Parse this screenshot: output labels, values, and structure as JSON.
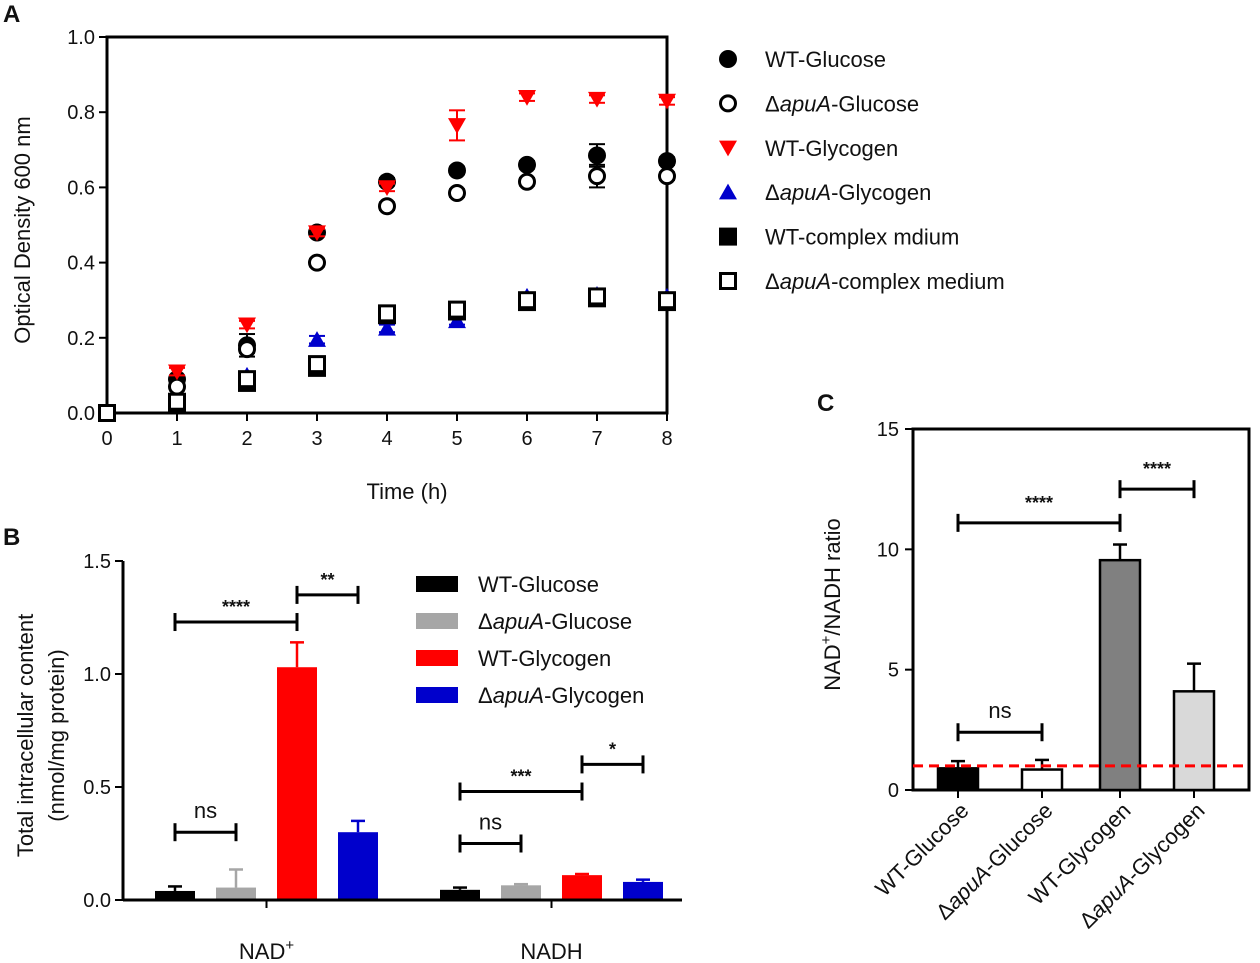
{
  "chart_data": [
    {
      "panel_label": "A",
      "type": "scatter",
      "xlabel": "Time (h)",
      "ylabel": "Optical Density 600 nm",
      "xlim": [
        0,
        8
      ],
      "ylim": [
        0,
        1.0
      ],
      "x_ticks": [
        "0",
        "1",
        "2",
        "3",
        "4",
        "5",
        "6",
        "7",
        "8"
      ],
      "y_ticks": [
        "0.0",
        "0.2",
        "0.4",
        "0.6",
        "0.8",
        "1.0"
      ],
      "x": [
        0,
        1,
        2,
        3,
        4,
        5,
        6,
        7,
        8
      ],
      "series": [
        {
          "name": "WT-Glucose",
          "marker": "circle-filled",
          "color": "#000000",
          "values": [
            0.0,
            0.09,
            0.18,
            0.48,
            0.615,
            0.645,
            0.66,
            0.685,
            0.67
          ],
          "errors": [
            0,
            0.01,
            0.03,
            0.01,
            0.01,
            0.01,
            0.01,
            0.03,
            0.01
          ]
        },
        {
          "name": "ΔapuA-Glucose",
          "marker": "circle-open",
          "color": "#000000",
          "values": [
            0.0,
            0.07,
            0.17,
            0.4,
            0.55,
            0.585,
            0.615,
            0.63,
            0.63
          ],
          "errors": [
            0,
            0.01,
            0.01,
            0.01,
            0.01,
            0.01,
            0.01,
            0.03,
            0.01
          ]
        },
        {
          "name": "WT-Glycogen",
          "marker": "triangle-down",
          "color": "#ff0000",
          "values": [
            0.0,
            0.11,
            0.235,
            0.48,
            0.6,
            0.765,
            0.84,
            0.835,
            0.83
          ],
          "errors": [
            0,
            0.01,
            0.01,
            0.01,
            0.01,
            0.04,
            0.01,
            0.01,
            0.01
          ]
        },
        {
          "name": "ΔapuA-Glycogen",
          "marker": "triangle-up",
          "color": "#0000cc",
          "values": [
            0.0,
            0.025,
            0.1,
            0.195,
            0.225,
            0.245,
            0.31,
            0.315,
            0.31
          ],
          "errors": [
            0,
            0.005,
            0.01,
            0.01,
            0.01,
            0.01,
            0.01,
            0.01,
            0.01
          ]
        },
        {
          "name": "WT-complex mdium",
          "marker": "square-filled",
          "color": "#000000",
          "values": [
            0.0,
            0.025,
            0.08,
            0.12,
            0.26,
            0.27,
            0.295,
            0.305,
            0.295
          ],
          "errors": [
            0,
            0.005,
            0.005,
            0.01,
            0.01,
            0.01,
            0.01,
            0.01,
            0.01
          ]
        },
        {
          "name": "ΔapuA-complex medium",
          "marker": "square-open",
          "color": "#000000",
          "values": [
            0.0,
            0.03,
            0.09,
            0.13,
            0.265,
            0.275,
            0.3,
            0.31,
            0.3
          ],
          "errors": [
            0,
            0.005,
            0.005,
            0.01,
            0.01,
            0.01,
            0.01,
            0.01,
            0.01
          ]
        }
      ]
    },
    {
      "panel_label": "B",
      "type": "bar",
      "ylabel": "Total intracellular content",
      "ylabel2": "(nmol/mg protein)",
      "ylim": [
        0,
        1.5
      ],
      "y_ticks": [
        "0.0",
        "0.5",
        "1.0",
        "1.5"
      ],
      "categories": [
        "NAD+",
        "NADH"
      ],
      "category_labels": [
        {
          "base": "NAD",
          "sup": "+"
        },
        {
          "base": "NADH",
          "sup": ""
        }
      ],
      "series": [
        {
          "name": "WT-Glucose",
          "color": "#000000",
          "values": [
            0.04,
            0.045
          ],
          "errors": [
            0.02,
            0.01
          ]
        },
        {
          "name": "ΔapuA-Glucose",
          "color": "#a6a6a6",
          "values": [
            0.055,
            0.065
          ],
          "errors": [
            0.08,
            0.005
          ]
        },
        {
          "name": "WT-Glycogen",
          "color": "#ff0000",
          "values": [
            1.03,
            0.11
          ],
          "errors": [
            0.11,
            0.005
          ]
        },
        {
          "name": "ΔapuA-Glycogen",
          "color": "#0000cc",
          "values": [
            0.3,
            0.08
          ],
          "errors": [
            0.05,
            0.01
          ]
        }
      ],
      "significance": [
        {
          "group": 0,
          "from": 0,
          "to": 1,
          "label": "ns",
          "level": 0.3
        },
        {
          "group": 0,
          "from": 0,
          "to": 2,
          "label": "****",
          "level": 1.23
        },
        {
          "group": 0,
          "from": 2,
          "to": 3,
          "label": "**",
          "level": 1.35
        },
        {
          "group": 1,
          "from": 0,
          "to": 1,
          "label": "ns",
          "level": 0.25
        },
        {
          "group": 1,
          "from": 0,
          "to": 2,
          "label": "***",
          "level": 0.48
        },
        {
          "group": 1,
          "from": 2,
          "to": 3,
          "label": "*",
          "level": 0.6
        }
      ]
    },
    {
      "panel_label": "C",
      "type": "bar",
      "ylabel_base": "NAD",
      "ylabel_sup": "+",
      "ylabel_rest": "/NADH ratio",
      "ylim": [
        0,
        15
      ],
      "y_ticks": [
        "0",
        "5",
        "10",
        "15"
      ],
      "categories": [
        "WT-Glucose",
        "ΔapuA-Glucose",
        "WT-Glycogen",
        "ΔapuA-Glycogen"
      ],
      "category_labels": [
        {
          "pre": "",
          "ital": "",
          "post": "WT-Glucose"
        },
        {
          "pre": "Δ",
          "ital": "apuA",
          "post": "-Glucose"
        },
        {
          "pre": "",
          "ital": "",
          "post": "WT-Glycogen"
        },
        {
          "pre": "Δ",
          "ital": "apuA",
          "post": "-Glycogen"
        }
      ],
      "values": [
        0.9,
        0.85,
        9.55,
        4.1
      ],
      "errors": [
        0.3,
        0.4,
        0.65,
        1.15
      ],
      "fills": [
        "#000000",
        "#ffffff",
        "#808080",
        "#d9d9d9"
      ],
      "reference_line": 1.0,
      "reference_color": "#ff0000",
      "significance": [
        {
          "from": 0,
          "to": 1,
          "label": "ns",
          "level": 2.4
        },
        {
          "from": 0,
          "to": 2,
          "label": "****",
          "level": 11.1
        },
        {
          "from": 2,
          "to": 3,
          "label": "****",
          "level": 12.5
        }
      ]
    }
  ],
  "legend_a": [
    {
      "pre": "",
      "ital": "",
      "post": "WT-Glucose"
    },
    {
      "pre": "Δ",
      "ital": "apuA",
      "post": "-Glucose"
    },
    {
      "pre": "",
      "ital": "",
      "post": "WT-Glycogen"
    },
    {
      "pre": "Δ",
      "ital": "apuA",
      "post": "-Glycogen"
    },
    {
      "pre": "",
      "ital": "",
      "post": "WT-complex mdium"
    },
    {
      "pre": "Δ",
      "ital": "apuA",
      "post": "-complex medium"
    }
  ],
  "legend_b": [
    {
      "pre": "",
      "ital": "",
      "post": "WT-Glucose"
    },
    {
      "pre": "Δ",
      "ital": "apuA",
      "post": "-Glucose"
    },
    {
      "pre": "",
      "ital": "",
      "post": "WT-Glycogen"
    },
    {
      "pre": "Δ",
      "ital": "apuA",
      "post": "-Glycogen"
    }
  ]
}
